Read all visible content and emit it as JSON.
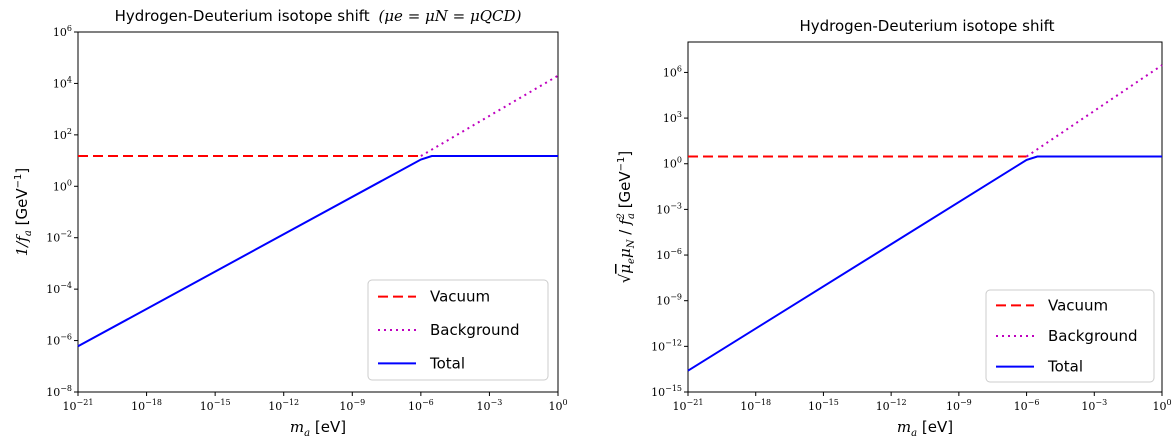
{
  "chart_data": [
    {
      "type": "line",
      "title": "Hydrogen-Deuterium isotope shift",
      "title_math": "(μe = μN = μQCD)",
      "xlabel": "m_a [eV]",
      "ylabel": "1/f_a [GeV⁻¹]",
      "x_scale": "log",
      "y_scale": "log",
      "xlim": [
        1e-21,
        1
      ],
      "ylim": [
        1e-08,
        1000000.0
      ],
      "x_tick_exponents": [
        -21,
        -18,
        -15,
        -12,
        -9,
        -6,
        -3,
        0
      ],
      "y_tick_exponents": [
        -8,
        -6,
        -4,
        -2,
        0,
        2,
        4,
        6
      ],
      "legend_position": "lower-right",
      "series": [
        {
          "name": "Vacuum",
          "style": "dashed",
          "color": "#ff0000",
          "x": [
            1e-21,
            1e-06
          ],
          "y": [
            15,
            15
          ]
        },
        {
          "name": "Background",
          "style": "dotted",
          "color": "#bf00bf",
          "x": [
            1e-06,
            1
          ],
          "y": [
            15,
            20000
          ]
        },
        {
          "name": "Total",
          "style": "solid",
          "color": "#0000ff",
          "x": [
            1e-21,
            1e-06,
            3e-06,
            1
          ],
          "y": [
            6e-07,
            11,
            15,
            15
          ]
        }
      ]
    },
    {
      "type": "line",
      "title": "Hydrogen-Deuterium isotope shift",
      "xlabel": "m_a [eV]",
      "ylabel": "√(μe μN) / f_a² [GeV⁻¹]",
      "x_scale": "log",
      "y_scale": "log",
      "xlim": [
        1e-21,
        1
      ],
      "ylim": [
        1e-15,
        100000000.0
      ],
      "x_tick_exponents": [
        -21,
        -18,
        -15,
        -12,
        -9,
        -6,
        -3,
        0
      ],
      "y_tick_exponents": [
        -15,
        -12,
        -9,
        -6,
        -3,
        0,
        3,
        6
      ],
      "legend_position": "lower-right",
      "series": [
        {
          "name": "Vacuum",
          "style": "dashed",
          "color": "#ff0000",
          "x": [
            1e-21,
            1e-06
          ],
          "y": [
            3,
            3
          ]
        },
        {
          "name": "Background",
          "style": "dotted",
          "color": "#bf00bf",
          "x": [
            1e-06,
            1
          ],
          "y": [
            3,
            3000000
          ]
        },
        {
          "name": "Total",
          "style": "solid",
          "color": "#0000ff",
          "x": [
            1e-21,
            1e-06,
            3e-06,
            1
          ],
          "y": [
            2.5e-14,
            1.8,
            3,
            3
          ]
        }
      ]
    }
  ]
}
